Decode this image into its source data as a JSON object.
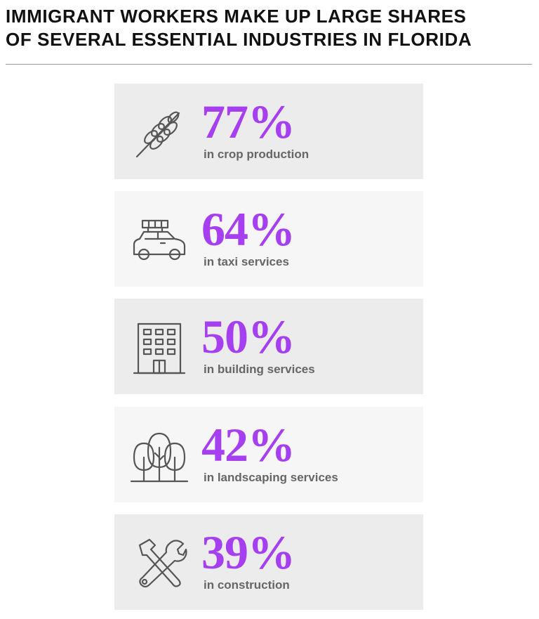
{
  "header": {
    "title_lines": [
      "IMMIGRANT WORKERS MAKE UP LARGE SHARES",
      "OF SEVERAL ESSENTIAL INDUSTRIES IN FLORIDA"
    ]
  },
  "items": [
    {
      "value": "77%",
      "label": "in crop production"
    },
    {
      "value": "64%",
      "label": "in taxi services"
    },
    {
      "value": "50%",
      "label": "in building services"
    },
    {
      "value": "42%",
      "label": "in landscaping services"
    },
    {
      "value": "39%",
      "label": "in construction"
    }
  ]
}
